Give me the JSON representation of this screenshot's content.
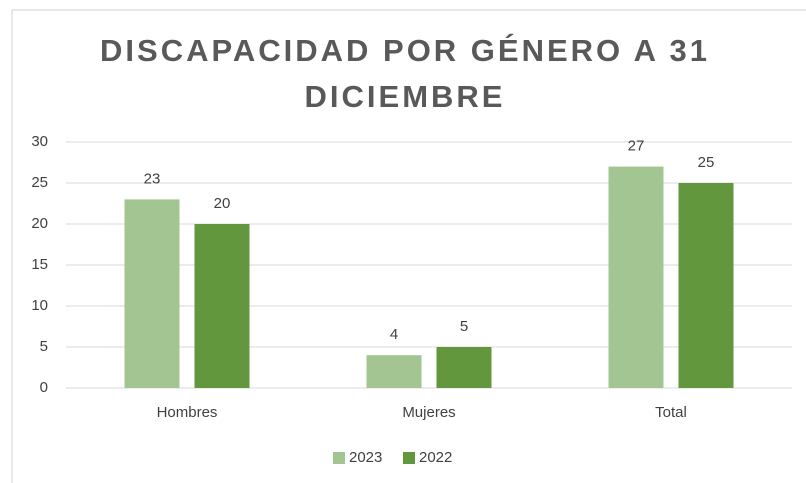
{
  "chart_data": {
    "type": "bar",
    "title": "DISCAPACIDAD POR GÉNERO A 31 DICIEMBRE",
    "categories": [
      "Hombres",
      "Mujeres",
      "Total"
    ],
    "series": [
      {
        "name": "2023",
        "color": "#a2c592",
        "values": [
          23,
          4,
          27
        ]
      },
      {
        "name": "2022",
        "color": "#62973e",
        "values": [
          20,
          5,
          25
        ]
      }
    ],
    "ylim": [
      0,
      30
    ],
    "yticks": [
      0,
      5,
      10,
      15,
      20,
      25,
      30
    ],
    "grid": true,
    "legend": "bottom"
  }
}
